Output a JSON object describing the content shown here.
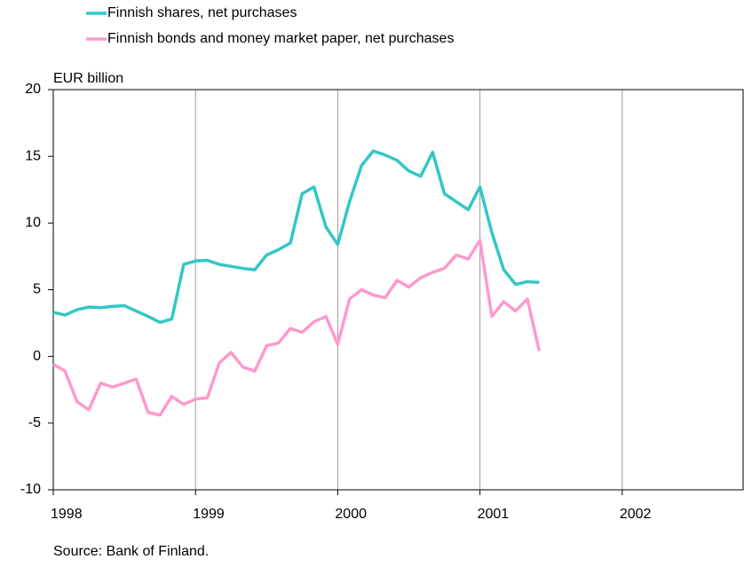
{
  "chart_data": {
    "type": "line",
    "y_label": "EUR billion",
    "source": "Source: Bank of Finland.",
    "x": [
      1998.0,
      1998.083,
      1998.167,
      1998.25,
      1998.333,
      1998.417,
      1998.5,
      1998.583,
      1998.667,
      1998.75,
      1998.833,
      1998.917,
      1999.0,
      1999.083,
      1999.167,
      1999.25,
      1999.333,
      1999.417,
      1999.5,
      1999.583,
      1999.667,
      1999.75,
      1999.833,
      1999.917,
      2000.0,
      2000.083,
      2000.167,
      2000.25,
      2000.333,
      2000.417,
      2000.5,
      2000.583,
      2000.667,
      2000.75,
      2000.833,
      2000.917,
      2001.0,
      2001.083,
      2001.167,
      2001.25,
      2001.333,
      2001.417
    ],
    "series": [
      {
        "name": "Finnish shares, net purchases",
        "color": "#33c6c6",
        "values": [
          3.3,
          3.1,
          3.5,
          3.7,
          3.65,
          3.75,
          3.8,
          3.4,
          3.0,
          2.55,
          2.8,
          6.9,
          7.15,
          7.2,
          6.9,
          6.75,
          6.6,
          6.5,
          7.6,
          8.0,
          8.5,
          12.2,
          12.7,
          9.7,
          8.4,
          11.6,
          14.3,
          15.4,
          15.1,
          14.7,
          13.9,
          13.5,
          15.3,
          12.2,
          11.6,
          11.0,
          12.7,
          9.3,
          6.5,
          5.4,
          5.6,
          5.55
        ]
      },
      {
        "name": "Finnish bonds and money market paper, net purchases",
        "color": "#ff99cc",
        "values": [
          -0.6,
          -1.1,
          -3.4,
          -4.0,
          -2.0,
          -2.3,
          -2.0,
          -1.7,
          -4.2,
          -4.4,
          -3.0,
          -3.6,
          -3.2,
          -3.1,
          -0.5,
          0.3,
          -0.8,
          -1.1,
          0.8,
          1.0,
          2.1,
          1.8,
          2.6,
          3.0,
          0.9,
          4.3,
          5.0,
          4.6,
          4.4,
          5.7,
          5.2,
          5.9,
          6.3,
          6.6,
          7.6,
          7.3,
          8.7,
          3.0,
          4.1,
          3.4,
          4.3,
          0.4
        ]
      }
    ],
    "xlim": [
      1998,
      2002.85
    ],
    "xticks": [
      1998,
      1999,
      2000,
      2001,
      2002
    ],
    "ylim": [
      -10,
      20
    ],
    "yticks": [
      -10,
      -5,
      0,
      5,
      10,
      15,
      20
    ],
    "grid": "x"
  }
}
